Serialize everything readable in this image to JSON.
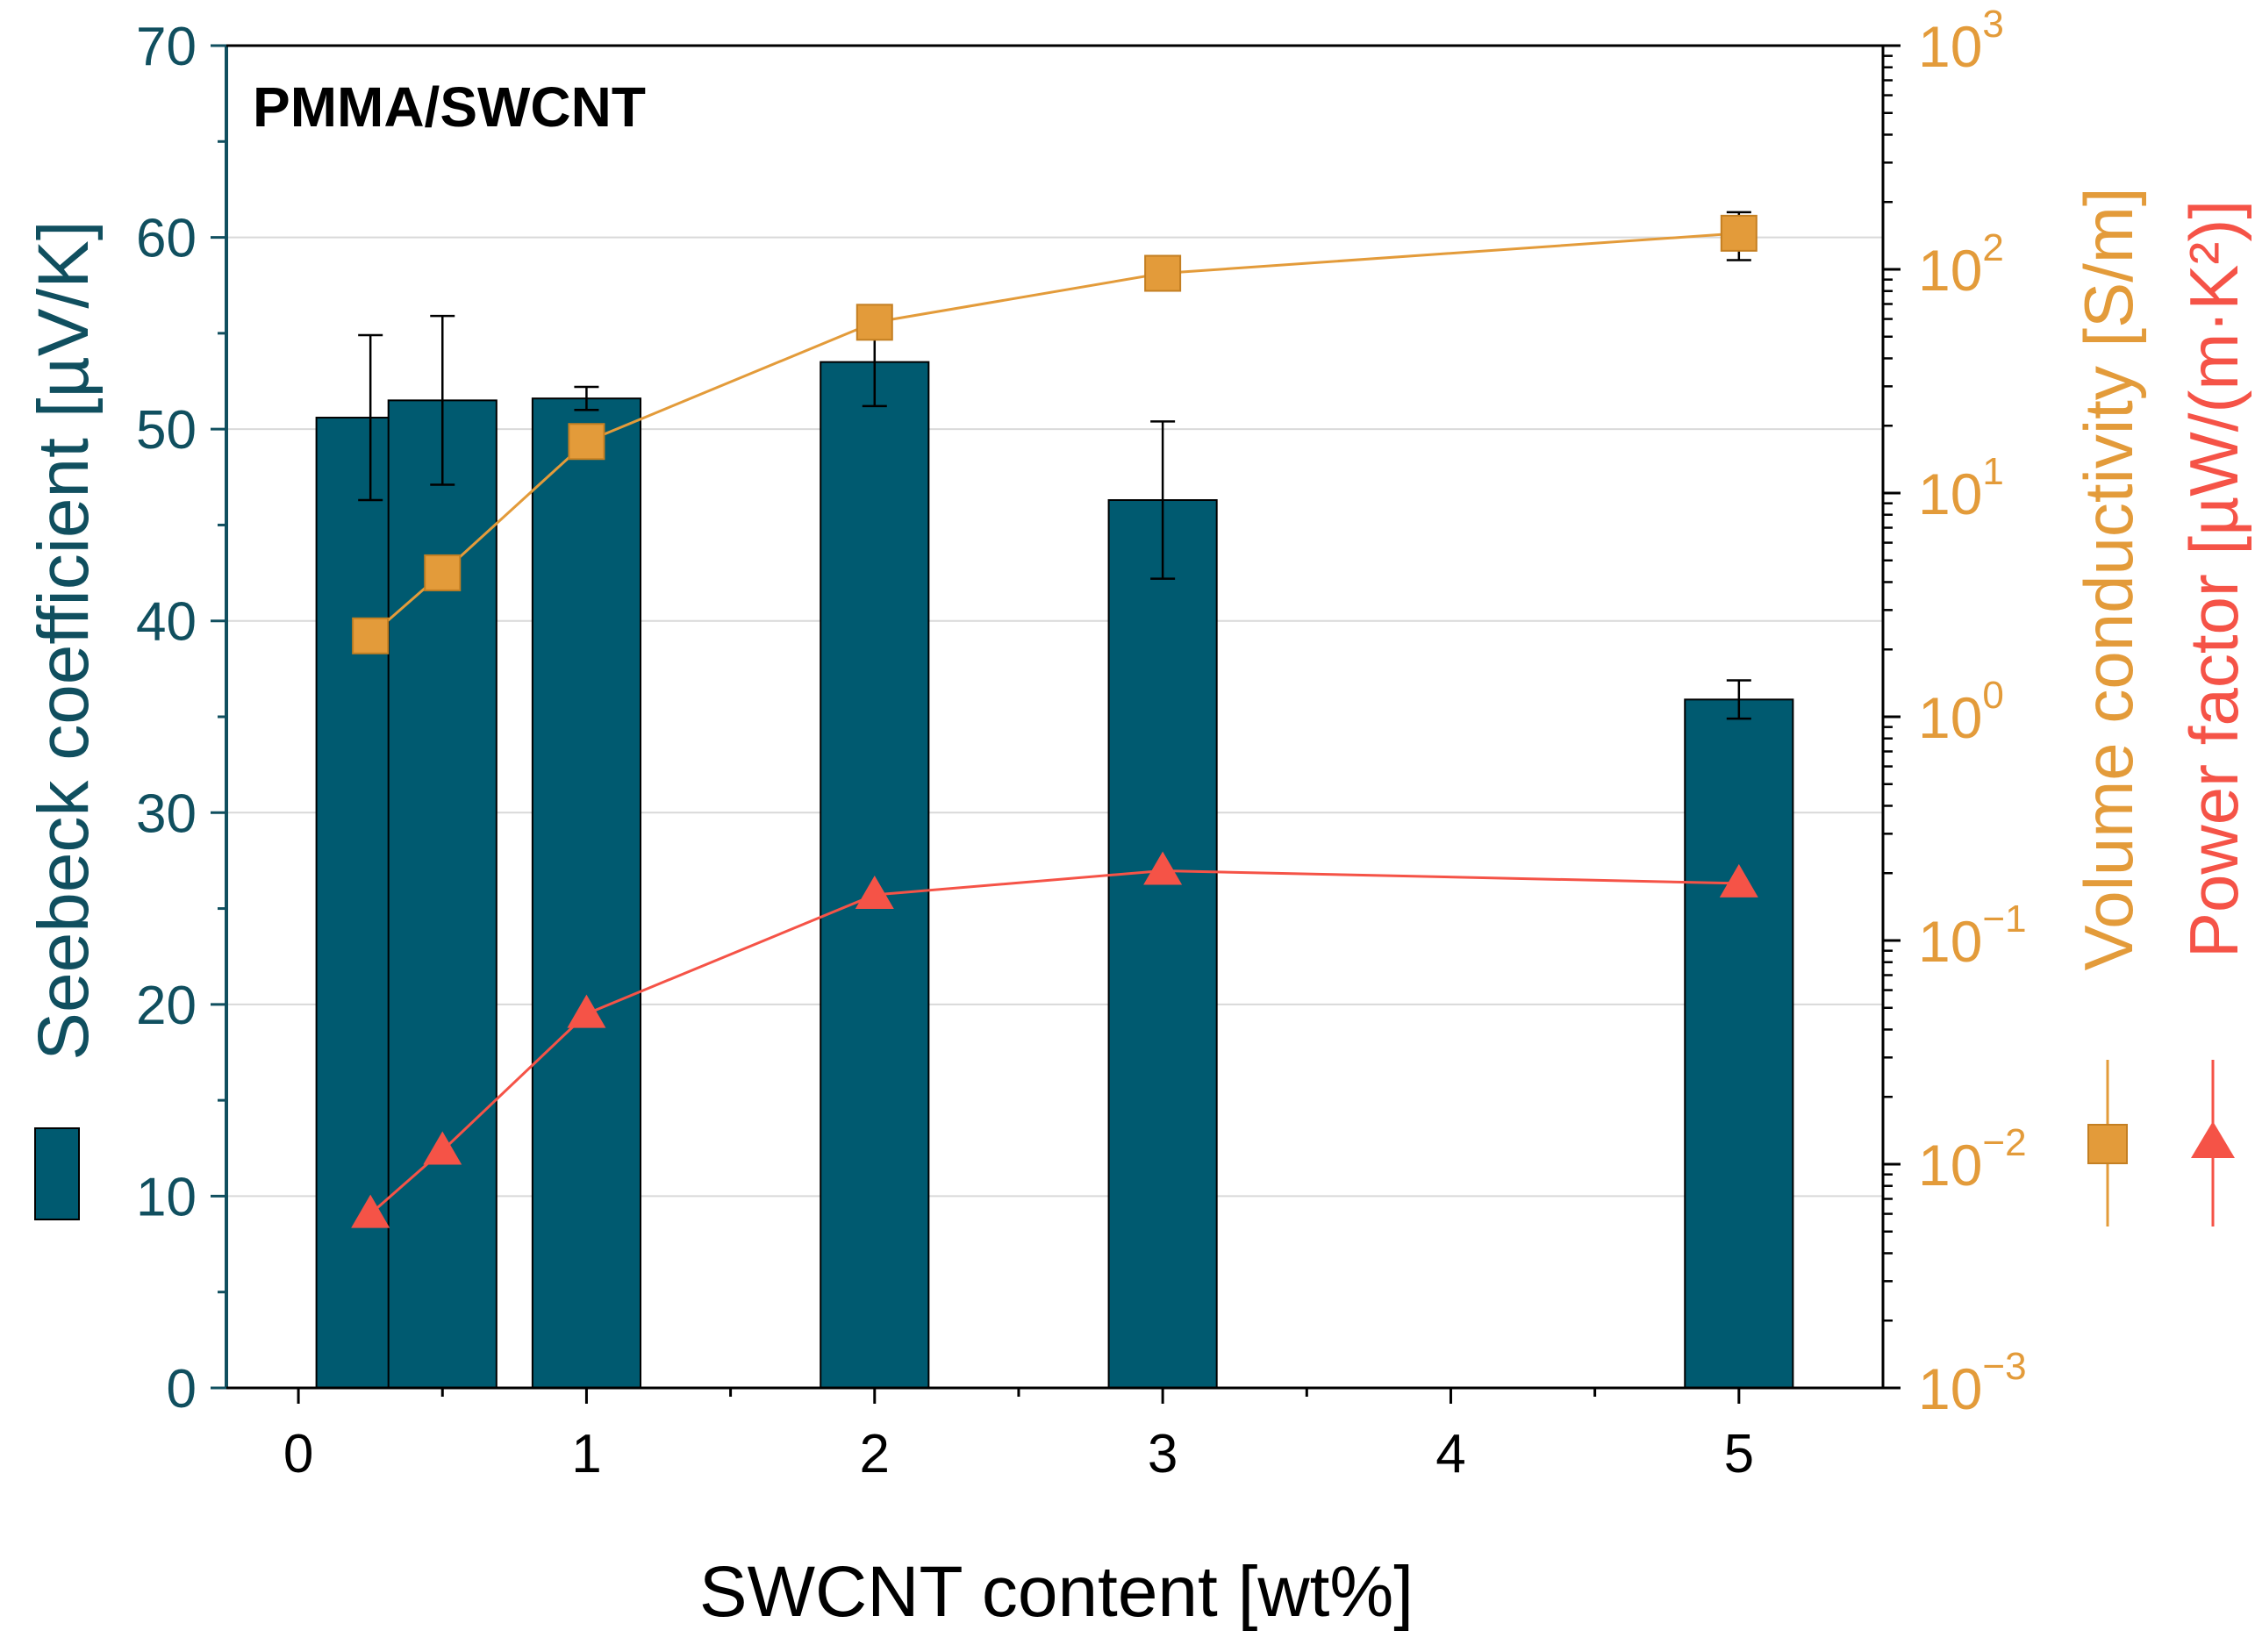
{
  "chart_data": {
    "type": "bar",
    "title": "PMMA/SWCNT",
    "xlabel": "SWCNT content [wt%]",
    "xlim": [
      -0.25,
      5.5
    ],
    "xticks": [
      0,
      1,
      2,
      3,
      4,
      5
    ],
    "ylabel_left": "Seebeck coefficient [µV/K]",
    "ylim_left": [
      0,
      70
    ],
    "yticks_left": [
      0,
      10,
      20,
      30,
      40,
      50,
      60,
      70
    ],
    "ylabel_right_1": "Volume conductivity [S/m]",
    "ylabel_right_2": "Power factor [µW/(m·K²)]",
    "ylim_right": [
      0.001,
      1000
    ],
    "yscale_right": "log",
    "yticks_right": [
      {
        "value": 0.001,
        "base": "10",
        "exp": "−3"
      },
      {
        "value": 0.01,
        "base": "10",
        "exp": "−2"
      },
      {
        "value": 0.1,
        "base": "10",
        "exp": "−1"
      },
      {
        "value": 1,
        "base": "10",
        "exp": "0"
      },
      {
        "value": 10,
        "base": "10",
        "exp": "1"
      },
      {
        "value": 100,
        "base": "10",
        "exp": "2"
      },
      {
        "value": 1000,
        "base": "10",
        "exp": "3"
      }
    ],
    "grid": true,
    "bar_width_wt": 0.375,
    "series": [
      {
        "key": "seebeck",
        "type": "bar",
        "axis": "left",
        "color": "#005a70",
        "x": [
          0.25,
          0.5,
          1,
          2,
          3,
          5
        ],
        "values": [
          50.6,
          51.5,
          51.6,
          53.5,
          46.3,
          35.9
        ],
        "errors": [
          4.3,
          4.4,
          0.6,
          2.3,
          4.1,
          1.0
        ]
      },
      {
        "key": "conductivity",
        "type": "line",
        "marker": "square",
        "axis": "right",
        "color": "#e39b3a",
        "x": [
          0.25,
          0.5,
          1,
          2,
          3,
          5
        ],
        "values": [
          2.3,
          4.4,
          17,
          58,
          96,
          145
        ],
        "errors_low": [
          0,
          0,
          0,
          0,
          0,
          35
        ],
        "errors_high": [
          0,
          0,
          0,
          0,
          0,
          35
        ]
      },
      {
        "key": "power_factor",
        "type": "line",
        "marker": "triangle",
        "axis": "right",
        "color": "#f55347",
        "x": [
          0.25,
          0.5,
          1,
          2,
          3,
          5
        ],
        "values": [
          0.006,
          0.0115,
          0.047,
          0.16,
          0.205,
          0.18
        ]
      }
    ]
  },
  "colors": {
    "seebeck_axis": "#104f5f",
    "conductivity_axis": "#e39b3a",
    "power_factor_axis": "#f55347",
    "grid": "#d9d9d9"
  }
}
